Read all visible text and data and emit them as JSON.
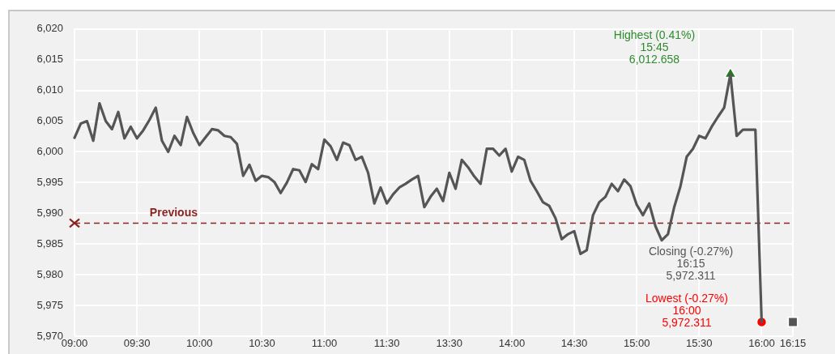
{
  "chart_data": {
    "type": "line",
    "categories": [
      "09:00",
      null,
      null,
      null,
      null,
      null,
      null,
      null,
      null,
      null,
      "09:30",
      null,
      null,
      null,
      null,
      null,
      null,
      null,
      null,
      null,
      "10:00",
      null,
      null,
      null,
      null,
      null,
      null,
      null,
      null,
      null,
      "10:30",
      null,
      null,
      null,
      null,
      null,
      null,
      null,
      null,
      null,
      "11:00",
      null,
      null,
      null,
      null,
      null,
      null,
      null,
      null,
      null,
      "11:30",
      null,
      null,
      null,
      null,
      null,
      null,
      null,
      null,
      null,
      "13:30",
      null,
      null,
      null,
      null,
      null,
      null,
      null,
      null,
      null,
      "14:00",
      null,
      null,
      null,
      null,
      null,
      null,
      null,
      null,
      null,
      "14:30",
      null,
      null,
      null,
      null,
      null,
      null,
      null,
      null,
      null,
      "15:00",
      null,
      null,
      null,
      null,
      null,
      null,
      null,
      null,
      null,
      "15:30",
      null,
      null,
      null,
      null,
      null,
      null,
      null,
      null,
      null,
      "16:00",
      null,
      null,
      null,
      null,
      "16:15"
    ],
    "series": [
      {
        "color": "#555555",
        "values": [
          6002.3,
          6004.6,
          6005.0,
          6001.8,
          6007.9,
          6005.0,
          6003.7,
          6006.5,
          6002.2,
          6004.1,
          6002.2,
          6003.5,
          6005.2,
          6007.2,
          6001.8,
          6000.0,
          6002.6,
          6001.1,
          6005.7,
          6003.1,
          6001.1,
          6002.4,
          6003.7,
          6003.5,
          6002.6,
          6002.4,
          6001.3,
          5996.1,
          5997.9,
          5995.3,
          5996.1,
          5995.9,
          5995.1,
          5993.3,
          5995.0,
          5997.2,
          5997.0,
          5995.1,
          5998.0,
          5997.2,
          6002.0,
          6000.9,
          5998.7,
          6001.5,
          6001.1,
          5998.7,
          5999.2,
          5996.6,
          5991.6,
          5994.2,
          5991.6,
          5993.1,
          5994.2,
          5994.8,
          5995.5,
          5996.1,
          5991.0,
          5992.7,
          5994.0,
          5992.0,
          5996.6,
          5994.0,
          5998.7,
          5997.5,
          5996.0,
          5994.8,
          6000.5,
          6000.5,
          5999.4,
          6000.5,
          5996.8,
          5999.2,
          5998.7,
          5995.3,
          5993.6,
          5991.8,
          5991.2,
          5989.2,
          5985.8,
          5986.6,
          5987.1,
          5983.4,
          5984.0,
          5989.7,
          5991.8,
          5992.7,
          5994.8,
          5993.6,
          5995.5,
          5994.4,
          5991.4,
          5989.7,
          5991.6,
          5987.9,
          5985.6,
          5986.6,
          5991.0,
          5994.4,
          5999.2,
          6000.5,
          6002.6,
          6002.2,
          6004.1,
          6005.7,
          6007.2,
          6012.658,
          6002.6,
          6003.6,
          6003.6,
          6003.6,
          5972.311,
          null,
          null,
          null,
          null,
          null
        ]
      },
      {
        "type": "scatter",
        "color": "#1e7b1e",
        "marker": "triangle",
        "values": [
          null,
          null,
          null,
          null,
          null,
          null,
          null,
          null,
          null,
          null,
          null,
          null,
          null,
          null,
          null,
          null,
          null,
          null,
          null,
          null,
          null,
          null,
          null,
          null,
          null,
          null,
          null,
          null,
          null,
          null,
          null,
          null,
          null,
          null,
          null,
          null,
          null,
          null,
          null,
          null,
          null,
          null,
          null,
          null,
          null,
          null,
          null,
          null,
          null,
          null,
          null,
          null,
          null,
          null,
          null,
          null,
          null,
          null,
          null,
          null,
          null,
          null,
          null,
          null,
          null,
          null,
          null,
          null,
          null,
          null,
          null,
          null,
          null,
          null,
          null,
          null,
          null,
          null,
          null,
          null,
          null,
          null,
          null,
          null,
          null,
          null,
          null,
          null,
          null,
          null,
          null,
          null,
          null,
          null,
          null,
          null,
          null,
          null,
          null,
          null,
          null,
          null,
          null,
          null,
          null,
          6012.658,
          null,
          null,
          null,
          null,
          null,
          null,
          null,
          null,
          null,
          null
        ]
      },
      {
        "type": "scatter",
        "color": "#ff0000",
        "marker": "circle",
        "values": [
          null,
          null,
          null,
          null,
          null,
          null,
          null,
          null,
          null,
          null,
          null,
          null,
          null,
          null,
          null,
          null,
          null,
          null,
          null,
          null,
          null,
          null,
          null,
          null,
          null,
          null,
          null,
          null,
          null,
          null,
          null,
          null,
          null,
          null,
          null,
          null,
          null,
          null,
          null,
          null,
          null,
          null,
          null,
          null,
          null,
          null,
          null,
          null,
          null,
          null,
          null,
          null,
          null,
          null,
          null,
          null,
          null,
          null,
          null,
          null,
          null,
          null,
          null,
          null,
          null,
          null,
          null,
          null,
          null,
          null,
          null,
          null,
          null,
          null,
          null,
          null,
          null,
          null,
          null,
          null,
          null,
          null,
          null,
          null,
          null,
          null,
          null,
          null,
          null,
          null,
          null,
          null,
          null,
          null,
          null,
          null,
          null,
          null,
          null,
          null,
          null,
          null,
          null,
          null,
          null,
          null,
          null,
          null,
          null,
          null,
          5972.311,
          null,
          null,
          null,
          null,
          null
        ]
      },
      {
        "type": "scatter",
        "color": "#555555",
        "marker": "square",
        "values": [
          null,
          null,
          null,
          null,
          null,
          null,
          null,
          null,
          null,
          null,
          null,
          null,
          null,
          null,
          null,
          null,
          null,
          null,
          null,
          null,
          null,
          null,
          null,
          null,
          null,
          null,
          null,
          null,
          null,
          null,
          null,
          null,
          null,
          null,
          null,
          null,
          null,
          null,
          null,
          null,
          null,
          null,
          null,
          null,
          null,
          null,
          null,
          null,
          null,
          null,
          null,
          null,
          null,
          null,
          null,
          null,
          null,
          null,
          null,
          null,
          null,
          null,
          null,
          null,
          null,
          null,
          null,
          null,
          null,
          null,
          null,
          null,
          null,
          null,
          null,
          null,
          null,
          null,
          null,
          null,
          null,
          null,
          null,
          null,
          null,
          null,
          null,
          null,
          null,
          null,
          null,
          null,
          null,
          null,
          null,
          null,
          null,
          null,
          null,
          null,
          null,
          null,
          null,
          null,
          null,
          null,
          null,
          null,
          null,
          null,
          null,
          null,
          null,
          null,
          null,
          5972.311
        ]
      }
    ],
    "ylim": [
      5970,
      6020
    ],
    "yticks": [
      {
        "value": 5970,
        "label": "5,970"
      },
      {
        "value": 5975,
        "label": "5,975"
      },
      {
        "value": 5980,
        "label": "5,980"
      },
      {
        "value": 5985,
        "label": "5,985"
      },
      {
        "value": 5990,
        "label": "5,990"
      },
      {
        "value": 5995,
        "label": "5,995"
      },
      {
        "value": 6000,
        "label": "6,000"
      },
      {
        "value": 6005,
        "label": "6,005"
      },
      {
        "value": 6010,
        "label": "6,010"
      },
      {
        "value": 6015,
        "label": "6,015"
      },
      {
        "value": 6020,
        "label": "6,020"
      }
    ],
    "grid": true,
    "ref_lines": [
      {
        "axis": "y",
        "value": 5988.4,
        "label": "Previous",
        "color": "#8b2323",
        "line_style": "dashed"
      }
    ],
    "annotations": [
      "Highest (0.41%)\n15:45\n6,012.658",
      "Lowest (-0.27%)\n16:00\n5,972.311",
      "Closing (-0.27%)\n16:15\n5,972.311"
    ]
  }
}
